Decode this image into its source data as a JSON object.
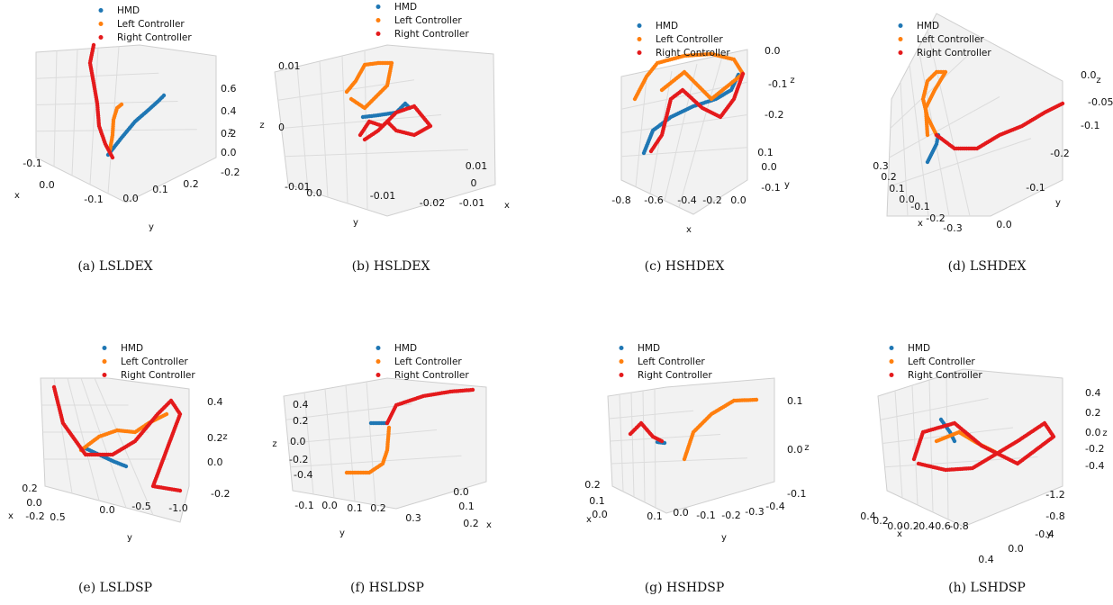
{
  "colors": {
    "hmd": "#1f77b4",
    "left": "#ff7f0e",
    "right": "#e41a1c",
    "grid": "#dcdcdc",
    "pane": "#f2f2f2"
  },
  "legend": [
    "HMD",
    "Left Controller",
    "Right Controller"
  ],
  "chart_data": [
    {
      "id": "a",
      "type": "scatter",
      "caption": "(a) LSLDEX",
      "xlabel": "x",
      "ylabel": "y",
      "zlabel": "z",
      "x_ticks": [
        "-0.1",
        "0.0"
      ],
      "y_ticks": [
        "-0.1",
        "0.0",
        "0.1",
        "0.2"
      ],
      "z_ticks": [
        "0.6",
        "0.4",
        "0.2",
        "0.0",
        "-0.2"
      ],
      "series": [
        {
          "name": "HMD",
          "points": [
            [
              0.0,
              0.0,
              -0.05
            ],
            [
              0.01,
              0.04,
              0.05
            ],
            [
              0.02,
              0.08,
              0.15
            ],
            [
              0.03,
              0.12,
              0.25
            ],
            [
              0.04,
              0.15,
              0.35
            ],
            [
              0.05,
              0.17,
              0.42
            ]
          ]
        },
        {
          "name": "Left Controller",
          "points": [
            [
              -0.02,
              -0.05,
              -0.05
            ],
            [
              -0.01,
              -0.03,
              0.05
            ],
            [
              -0.01,
              -0.02,
              0.15
            ],
            [
              -0.01,
              -0.01,
              0.25
            ]
          ]
        },
        {
          "name": "Right Controller",
          "points": [
            [
              0.0,
              -0.03,
              -0.05
            ],
            [
              -0.02,
              -0.07,
              0.05
            ],
            [
              -0.04,
              -0.09,
              0.15
            ],
            [
              -0.06,
              -0.1,
              0.28
            ],
            [
              -0.08,
              -0.09,
              0.4
            ],
            [
              -0.09,
              -0.1,
              0.52
            ],
            [
              -0.1,
              -0.09,
              0.62
            ]
          ]
        }
      ]
    },
    {
      "id": "b",
      "type": "scatter",
      "caption": "(b) HSLDEX",
      "xlabel": "x",
      "ylabel": "y",
      "zlabel": "z",
      "x_ticks": [
        "0.01",
        "0",
        "-0.01"
      ],
      "y_ticks": [
        "0.0",
        "-0.01",
        "-0.02"
      ],
      "z_ticks": [
        "0.01",
        "0",
        "-0.01"
      ],
      "series": [
        {
          "name": "HMD",
          "points": [
            [
              0.0,
              -0.006,
              0.0
            ],
            [
              0.001,
              -0.008,
              0.001
            ],
            [
              0.0,
              -0.01,
              0.002
            ],
            [
              -0.001,
              -0.012,
              0.001
            ]
          ]
        },
        {
          "name": "Left Controller",
          "points": [
            [
              0.0,
              -0.005,
              0.002
            ],
            [
              0.002,
              -0.004,
              0.005
            ],
            [
              0.0,
              -0.006,
              0.008
            ],
            [
              -0.002,
              -0.008,
              0.009
            ],
            [
              -0.001,
              -0.004,
              0.006
            ],
            [
              0.001,
              -0.003,
              0.003
            ]
          ]
        },
        {
          "name": "Right Controller",
          "points": [
            [
              0.0,
              -0.004,
              -0.001
            ],
            [
              0.001,
              -0.008,
              0.001
            ],
            [
              -0.001,
              -0.012,
              -0.002
            ],
            [
              0.0,
              -0.015,
              0.0
            ],
            [
              0.002,
              -0.01,
              -0.003
            ],
            [
              0.0,
              -0.006,
              -0.002
            ]
          ]
        }
      ]
    },
    {
      "id": "c",
      "type": "scatter",
      "caption": "(c) HSHDEX",
      "xlabel": "x",
      "ylabel": "y",
      "zlabel": "z",
      "x_ticks": [
        "-0.8",
        "-0.6",
        "-0.4",
        "-0.2",
        "0.0"
      ],
      "y_ticks": [
        "0.1",
        "0.0",
        "-0.1"
      ],
      "z_ticks": [
        "0.0",
        "-0.1",
        "-0.2"
      ],
      "series": [
        {
          "name": "HMD",
          "points": [
            [
              -0.62,
              0.0,
              -0.25
            ],
            [
              -0.5,
              0.0,
              -0.22
            ],
            [
              -0.35,
              0.0,
              -0.18
            ],
            [
              -0.2,
              0.0,
              -0.12
            ],
            [
              -0.08,
              0.0,
              -0.05
            ]
          ]
        },
        {
          "name": "Left Controller",
          "points": [
            [
              -0.6,
              0.0,
              -0.05
            ],
            [
              -0.5,
              0.0,
              0.02
            ],
            [
              -0.3,
              0.0,
              0.0
            ],
            [
              -0.1,
              0.0,
              -0.01
            ],
            [
              -0.05,
              0.0,
              -0.03
            ],
            [
              -0.3,
              0.0,
              -0.04
            ]
          ]
        },
        {
          "name": "Right Controller",
          "points": [
            [
              -0.55,
              0.0,
              -0.25
            ],
            [
              -0.4,
              0.0,
              -0.22
            ],
            [
              -0.25,
              0.0,
              -0.2
            ],
            [
              -0.1,
              0.0,
              -0.18
            ],
            [
              -0.05,
              0.0,
              -0.05
            ]
          ]
        }
      ]
    },
    {
      "id": "d",
      "type": "scatter",
      "caption": "(d) LSHDEX",
      "xlabel": "x",
      "ylabel": "y",
      "zlabel": "z",
      "x_ticks": [
        "0.3",
        "0.2",
        "0.1",
        "0.0",
        "-0.1",
        "-0.2",
        "-0.3"
      ],
      "y_ticks": [
        "0.0",
        "-0.1",
        "-0.2"
      ],
      "z_ticks": [
        "0.0",
        "-0.05",
        "-0.1"
      ],
      "series": [
        {
          "name": "HMD",
          "points": [
            [
              0.1,
              0.0,
              -0.1
            ],
            [
              0.09,
              -0.01,
              -0.09
            ],
            [
              0.08,
              -0.01,
              -0.08
            ]
          ]
        },
        {
          "name": "Left Controller",
          "points": [
            [
              0.05,
              -0.01,
              -0.08
            ],
            [
              0.1,
              0.0,
              -0.05
            ],
            [
              0.2,
              0.0,
              -0.02
            ],
            [
              0.3,
              0.0,
              0.0
            ],
            [
              0.15,
              -0.02,
              -0.05
            ]
          ]
        },
        {
          "name": "Right Controller",
          "points": [
            [
              0.05,
              -0.01,
              -0.09
            ],
            [
              0.0,
              -0.05,
              -0.08
            ],
            [
              -0.1,
              -0.1,
              -0.07
            ],
            [
              -0.2,
              -0.15,
              -0.06
            ],
            [
              -0.3,
              -0.2,
              -0.05
            ]
          ]
        }
      ]
    },
    {
      "id": "e",
      "type": "scatter",
      "caption": "(e) LSLDSP",
      "xlabel": "x",
      "ylabel": "y",
      "zlabel": "z",
      "x_ticks": [
        "0.2",
        "0.0",
        "-0.2"
      ],
      "y_ticks": [
        "0.5",
        "0.0",
        "-0.5",
        "-1.0"
      ],
      "z_ticks": [
        "0.4",
        "0.2",
        "0.0",
        "-0.2"
      ],
      "series": [
        {
          "name": "HMD",
          "points": [
            [
              0.0,
              0.2,
              0.0
            ],
            [
              0.0,
              0.0,
              -0.02
            ],
            [
              0.0,
              -0.2,
              -0.04
            ]
          ]
        },
        {
          "name": "Left Controller",
          "points": [
            [
              0.0,
              0.1,
              0.05
            ],
            [
              0.0,
              -0.1,
              0.1
            ],
            [
              0.0,
              -0.3,
              0.15
            ],
            [
              0.0,
              -0.5,
              0.25
            ]
          ]
        },
        {
          "name": "Right Controller",
          "points": [
            [
              0.0,
              0.6,
              0.4
            ],
            [
              0.0,
              0.4,
              0.1
            ],
            [
              0.0,
              0.1,
              -0.05
            ],
            [
              0.0,
              -0.3,
              0.0
            ],
            [
              0.0,
              -0.6,
              0.35
            ],
            [
              0.0,
              -0.9,
              -0.1
            ]
          ]
        }
      ]
    },
    {
      "id": "f",
      "type": "scatter",
      "caption": "(f) HSLDSP",
      "xlabel": "x",
      "ylabel": "y",
      "zlabel": "z",
      "x_ticks": [
        "0.0",
        "0.1",
        "0.2"
      ],
      "y_ticks": [
        "-0.1",
        "0.0",
        "0.1",
        "0.2",
        "0.3"
      ],
      "z_ticks": [
        "0.4",
        "0.2",
        "0.0",
        "-0.2",
        "-0.4"
      ],
      "series": [
        {
          "name": "HMD",
          "points": [
            [
              0.05,
              0.1,
              0.1
            ],
            [
              0.05,
              0.12,
              0.1
            ]
          ]
        },
        {
          "name": "Left Controller",
          "points": [
            [
              0.05,
              0.12,
              0.05
            ],
            [
              0.05,
              0.12,
              -0.1
            ],
            [
              0.05,
              0.1,
              -0.25
            ],
            [
              0.05,
              0.05,
              -0.35
            ]
          ]
        },
        {
          "name": "Right Controller",
          "points": [
            [
              0.05,
              0.12,
              0.1
            ],
            [
              0.08,
              0.16,
              0.25
            ],
            [
              0.12,
              0.22,
              0.4
            ],
            [
              0.15,
              0.3,
              0.45
            ]
          ]
        }
      ]
    },
    {
      "id": "g",
      "type": "scatter",
      "caption": "(g) HSHDSP",
      "xlabel": "x",
      "ylabel": "y",
      "zlabel": "z",
      "x_ticks": [
        "0.2",
        "0.1",
        "0.0"
      ],
      "y_ticks": [
        "0.1",
        "0.0",
        "-0.1",
        "-0.2",
        "-0.3",
        "-0.4"
      ],
      "z_ticks": [
        "0.1",
        "0.0",
        "-0.1"
      ],
      "series": [
        {
          "name": "HMD",
          "points": [
            [
              0.05,
              0.05,
              0.0
            ],
            [
              0.05,
              0.04,
              0.0
            ]
          ]
        },
        {
          "name": "Left Controller",
          "points": [
            [
              0.05,
              -0.05,
              -0.08
            ],
            [
              0.05,
              -0.15,
              0.0
            ],
            [
              0.05,
              -0.25,
              0.08
            ],
            [
              0.05,
              -0.35,
              0.1
            ]
          ]
        },
        {
          "name": "Right Controller",
          "points": [
            [
              0.05,
              0.1,
              0.02
            ],
            [
              0.05,
              0.05,
              -0.01
            ],
            [
              0.05,
              0.02,
              0.0
            ]
          ]
        }
      ]
    },
    {
      "id": "h",
      "type": "scatter",
      "caption": "(h) LSHDSP",
      "xlabel": "x",
      "ylabel": "y",
      "zlabel": "z",
      "x_ticks": [
        "0.4",
        "0.2",
        "0.0",
        "-0.2",
        "-0.4",
        "-0.6",
        "-0.8"
      ],
      "y_ticks": [
        "-1.2",
        "-0.8",
        "-0.4",
        "0.0",
        "0.4"
      ],
      "z_ticks": [
        "0.4",
        "0.2",
        "0.0",
        "-0.2",
        "-0.4"
      ],
      "series": [
        {
          "name": "HMD",
          "points": [
            [
              0.0,
              0.0,
              0.1
            ],
            [
              -0.1,
              0.0,
              0.05
            ]
          ]
        },
        {
          "name": "Left Controller",
          "points": [
            [
              0.1,
              -0.1,
              0.0
            ],
            [
              -0.1,
              -0.2,
              -0.05
            ],
            [
              -0.2,
              -0.3,
              0.0
            ]
          ]
        },
        {
          "name": "Right Controller",
          "points": [
            [
              0.2,
              0.2,
              -0.2
            ],
            [
              0.0,
              -0.2,
              -0.1
            ],
            [
              -0.4,
              -0.6,
              -0.3
            ],
            [
              -0.6,
              -0.9,
              0.1
            ],
            [
              -0.2,
              -0.5,
              -0.2
            ]
          ]
        }
      ]
    }
  ]
}
